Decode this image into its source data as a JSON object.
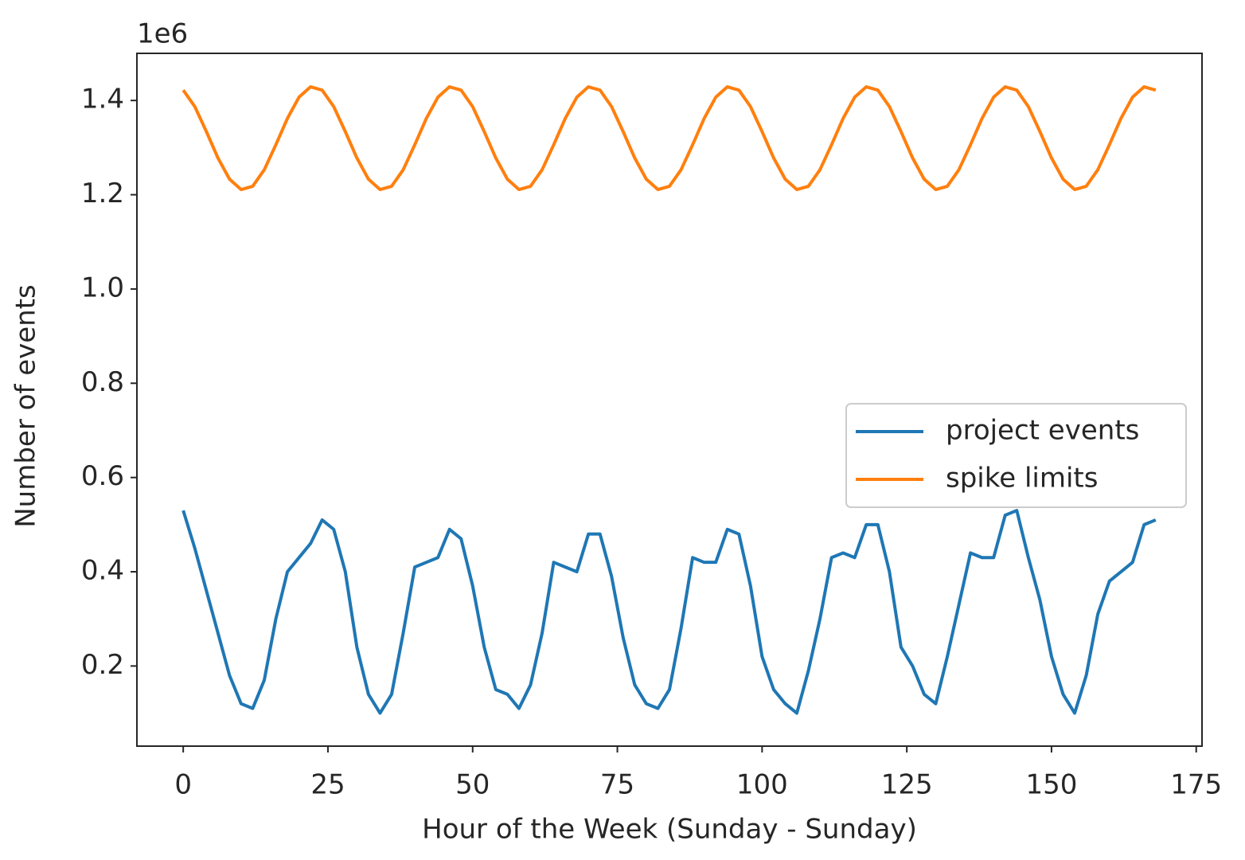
{
  "chart_data": {
    "type": "line",
    "x_label": "Hour of the Week (Sunday - Sunday)",
    "y_label": "Number of events",
    "y_offset_label": "1e6",
    "x": [
      0,
      2,
      4,
      6,
      8,
      10,
      12,
      14,
      16,
      18,
      20,
      22,
      24,
      26,
      28,
      30,
      32,
      34,
      36,
      38,
      40,
      42,
      44,
      46,
      48,
      50,
      52,
      54,
      56,
      58,
      60,
      62,
      64,
      66,
      68,
      70,
      72,
      74,
      76,
      78,
      80,
      82,
      84,
      86,
      88,
      90,
      92,
      94,
      96,
      98,
      100,
      102,
      104,
      106,
      108,
      110,
      112,
      114,
      116,
      118,
      120,
      122,
      124,
      126,
      128,
      130,
      132,
      134,
      136,
      138,
      140,
      142,
      144,
      146,
      148,
      150,
      152,
      154,
      156,
      158,
      160,
      162,
      164,
      166,
      168
    ],
    "series": [
      {
        "name": "project events",
        "color": "#1f77b4",
        "values": [
          0.53,
          0.45,
          0.36,
          0.27,
          0.18,
          0.12,
          0.11,
          0.17,
          0.3,
          0.4,
          0.43,
          0.46,
          0.51,
          0.49,
          0.4,
          0.24,
          0.14,
          0.1,
          0.14,
          0.27,
          0.41,
          0.42,
          0.43,
          0.49,
          0.47,
          0.37,
          0.24,
          0.15,
          0.14,
          0.11,
          0.16,
          0.27,
          0.42,
          0.41,
          0.4,
          0.48,
          0.48,
          0.39,
          0.26,
          0.16,
          0.12,
          0.11,
          0.15,
          0.28,
          0.43,
          0.42,
          0.42,
          0.49,
          0.48,
          0.37,
          0.22,
          0.15,
          0.12,
          0.1,
          0.19,
          0.3,
          0.43,
          0.44,
          0.43,
          0.5,
          0.5,
          0.4,
          0.24,
          0.2,
          0.14,
          0.12,
          0.22,
          0.33,
          0.44,
          0.43,
          0.43,
          0.52,
          0.53,
          0.43,
          0.34,
          0.22,
          0.14,
          0.1,
          0.18,
          0.31,
          0.38,
          0.4,
          0.42,
          0.5,
          0.51
        ]
      },
      {
        "name": "spike limits",
        "color": "#ff7f0e",
        "values": [
          1.422,
          1.387,
          1.334,
          1.278,
          1.233,
          1.211,
          1.218,
          1.253,
          1.306,
          1.362,
          1.407,
          1.429,
          1.422,
          1.387,
          1.334,
          1.278,
          1.233,
          1.211,
          1.218,
          1.253,
          1.306,
          1.362,
          1.407,
          1.429,
          1.422,
          1.387,
          1.334,
          1.278,
          1.233,
          1.211,
          1.218,
          1.253,
          1.306,
          1.362,
          1.407,
          1.429,
          1.422,
          1.387,
          1.334,
          1.278,
          1.233,
          1.211,
          1.218,
          1.253,
          1.306,
          1.362,
          1.407,
          1.429,
          1.422,
          1.387,
          1.334,
          1.278,
          1.233,
          1.211,
          1.218,
          1.253,
          1.306,
          1.362,
          1.407,
          1.429,
          1.422,
          1.387,
          1.334,
          1.278,
          1.233,
          1.211,
          1.218,
          1.253,
          1.306,
          1.362,
          1.407,
          1.429,
          1.422,
          1.387,
          1.334,
          1.278,
          1.233,
          1.211,
          1.218,
          1.253,
          1.306,
          1.362,
          1.407,
          1.429,
          1.422
        ]
      }
    ],
    "xlim": [
      -8,
      176
    ],
    "xticks": [
      0,
      25,
      50,
      75,
      100,
      125,
      150,
      175
    ],
    "ylim": [
      0.03,
      1.5
    ],
    "yticks": [
      0.2,
      0.4,
      0.6,
      0.8,
      {
        "value": 1,
        "label": "1.0"
      },
      1.2,
      1.4
    ],
    "grid": false,
    "legend": "center right"
  }
}
